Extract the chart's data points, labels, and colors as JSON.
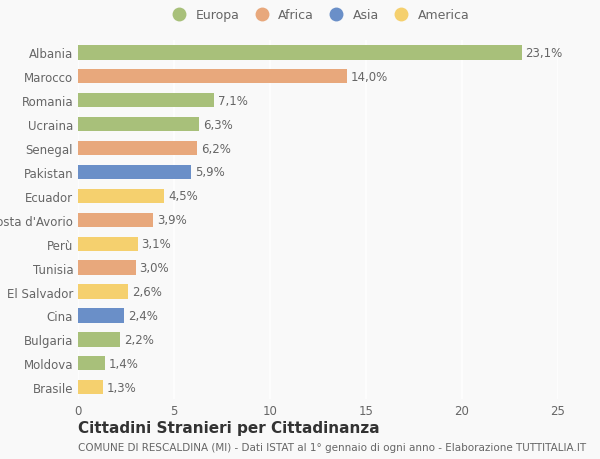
{
  "categories": [
    "Albania",
    "Marocco",
    "Romania",
    "Ucraina",
    "Senegal",
    "Pakistan",
    "Ecuador",
    "Costa d'Avorio",
    "Perù",
    "Tunisia",
    "El Salvador",
    "Cina",
    "Bulgaria",
    "Moldova",
    "Brasile"
  ],
  "values": [
    23.1,
    14.0,
    7.1,
    6.3,
    6.2,
    5.9,
    4.5,
    3.9,
    3.1,
    3.0,
    2.6,
    2.4,
    2.2,
    1.4,
    1.3
  ],
  "labels": [
    "23,1%",
    "14,0%",
    "7,1%",
    "6,3%",
    "6,2%",
    "5,9%",
    "4,5%",
    "3,9%",
    "3,1%",
    "3,0%",
    "2,6%",
    "2,4%",
    "2,2%",
    "1,4%",
    "1,3%"
  ],
  "colors": [
    "#a8c07a",
    "#e8a87c",
    "#a8c07a",
    "#a8c07a",
    "#e8a87c",
    "#6a8fc8",
    "#f5d06e",
    "#e8a87c",
    "#f5d06e",
    "#e8a87c",
    "#f5d06e",
    "#6a8fc8",
    "#a8c07a",
    "#a8c07a",
    "#f5d06e"
  ],
  "legend_labels": [
    "Europa",
    "Africa",
    "Asia",
    "America"
  ],
  "legend_colors": [
    "#a8c07a",
    "#e8a87c",
    "#6a8fc8",
    "#f5d06e"
  ],
  "xlim": [
    0,
    25
  ],
  "xticks": [
    0,
    5,
    10,
    15,
    20,
    25
  ],
  "title": "Cittadini Stranieri per Cittadinanza",
  "subtitle": "COMUNE DI RESCALDINA (MI) - Dati ISTAT al 1° gennaio di ogni anno - Elaborazione TUTTITALIA.IT",
  "background_color": "#f9f9f9",
  "grid_color": "#ffffff",
  "bar_height": 0.6,
  "title_fontsize": 11,
  "subtitle_fontsize": 7.5,
  "label_fontsize": 8.5,
  "tick_fontsize": 8.5,
  "legend_fontsize": 9
}
